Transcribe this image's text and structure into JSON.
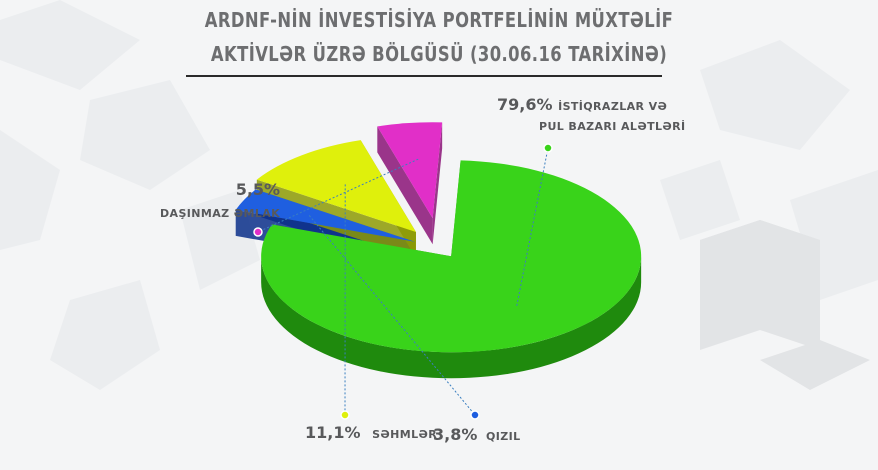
{
  "title_line1": "ARDNF-NİN İNVESTİSİYA PORTFELİNİN MÜXTƏLİF",
  "title_line2": "AKTİVLƏR ÜZRƏ BÖLGÜSÜ (30.06.16 TARİXİNƏ)",
  "chart_data": {
    "type": "pie",
    "title": "ARDNF-NİN İNVESTİSİYA PORTFELİNİN MÜXTƏLİF AKTİVLƏR ÜZRƏ BÖLGÜSÜ (30.06.16 TARİXİNƏ)",
    "slices": [
      {
        "label": "İSTİQRAZLAR VƏ PUL BAZARI ALƏTLƏRİ",
        "label_line1": "İSTİQRAZLAR VƏ",
        "label_line2": "PUL BAZARI ALƏTLƏRİ",
        "value": 79.6,
        "pct_text": "79,6%",
        "color": "#39d31a",
        "side": "#1f8a0d"
      },
      {
        "label": "QIZIL",
        "value": 3.8,
        "pct_text": "3,8%",
        "color": "#1f5fe0",
        "side": "#0b2f8a"
      },
      {
        "label": "SƏHMLƏR",
        "value": 11.1,
        "pct_text": "11,1%",
        "color": "#dff00c",
        "side": "#8d9a04"
      },
      {
        "label": "DAŞINMAZ ƏMLAK",
        "value": 5.5,
        "pct_text": "5,5%",
        "color": "#e12fc8",
        "side": "#8a1377"
      }
    ],
    "style": "3d-exploded"
  }
}
